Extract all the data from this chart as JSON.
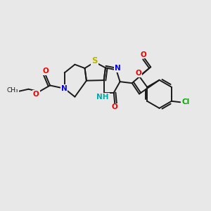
{
  "bg_color": "#e8e8e8",
  "bond_color": "#1a1a1a",
  "bond_width": 1.4,
  "atom_colors": {
    "S": "#b8b800",
    "N": "#0000ee",
    "O": "#ee0000",
    "Cl": "#00aa00",
    "NH": "#00aaaa",
    "C": "#1a1a1a"
  },
  "font_size": 7.5
}
